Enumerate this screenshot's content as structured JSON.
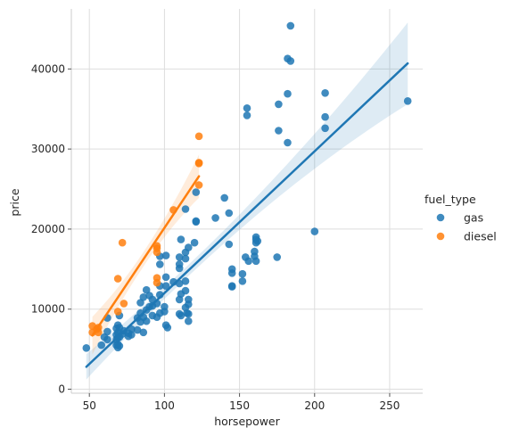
{
  "chart_data": {
    "type": "scatter",
    "xlabel": "horsepower",
    "ylabel": "price",
    "xlim": [
      38,
      272
    ],
    "ylim": [
      -500,
      47500
    ],
    "xticks": [
      50,
      100,
      150,
      200,
      250
    ],
    "yticks": [
      0,
      10000,
      20000,
      30000,
      40000
    ],
    "grid": true,
    "legend": {
      "title": "fuel_type",
      "placement": "right"
    },
    "series": [
      {
        "name": "gas",
        "color": "#1f77b4",
        "points": [
          [
            48,
            5151
          ],
          [
            58,
            5500
          ],
          [
            60,
            6500
          ],
          [
            62,
            6200
          ],
          [
            62,
            7200
          ],
          [
            62,
            8900
          ],
          [
            68,
            5500
          ],
          [
            68,
            6200
          ],
          [
            68,
            6800
          ],
          [
            68,
            7600
          ],
          [
            69,
            5200
          ],
          [
            69,
            5600
          ],
          [
            69,
            6400
          ],
          [
            69,
            7100
          ],
          [
            69,
            8000
          ],
          [
            70,
            5400
          ],
          [
            70,
            6500
          ],
          [
            70,
            7700
          ],
          [
            70,
            9200
          ],
          [
            72,
            6900
          ],
          [
            73,
            7300
          ],
          [
            76,
            6600
          ],
          [
            76,
            7000
          ],
          [
            78,
            6800
          ],
          [
            78,
            7500
          ],
          [
            82,
            7400
          ],
          [
            82,
            8900
          ],
          [
            84,
            8400
          ],
          [
            84,
            9500
          ],
          [
            84,
            10800
          ],
          [
            86,
            7100
          ],
          [
            86,
            9000
          ],
          [
            86,
            11500
          ],
          [
            88,
            8500
          ],
          [
            88,
            9900
          ],
          [
            88,
            12400
          ],
          [
            90,
            10300
          ],
          [
            90,
            11700
          ],
          [
            92,
            9200
          ],
          [
            92,
            10400
          ],
          [
            92,
            11200
          ],
          [
            95,
            9000
          ],
          [
            95,
            10700
          ],
          [
            97,
            9500
          ],
          [
            97,
            11800
          ],
          [
            97,
            12900
          ],
          [
            97,
            15600
          ],
          [
            97,
            16600
          ],
          [
            100,
            9700
          ],
          [
            100,
            10300
          ],
          [
            101,
            8000
          ],
          [
            101,
            12900
          ],
          [
            101,
            14000
          ],
          [
            101,
            16700
          ],
          [
            102,
            7700
          ],
          [
            106,
            13400
          ],
          [
            110,
            9400
          ],
          [
            110,
            11200
          ],
          [
            110,
            13200
          ],
          [
            110,
            15100
          ],
          [
            110,
            15600
          ],
          [
            110,
            16500
          ],
          [
            111,
            9200
          ],
          [
            111,
            11900
          ],
          [
            111,
            18700
          ],
          [
            114,
            10200
          ],
          [
            114,
            12300
          ],
          [
            114,
            13500
          ],
          [
            114,
            16300
          ],
          [
            114,
            17100
          ],
          [
            114,
            22500
          ],
          [
            115,
            9500
          ],
          [
            116,
            8500
          ],
          [
            116,
            9400
          ],
          [
            116,
            10600
          ],
          [
            116,
            11200
          ],
          [
            116,
            17700
          ],
          [
            120,
            18300
          ],
          [
            121,
            24600
          ],
          [
            121,
            21000
          ],
          [
            121,
            20900
          ],
          [
            134,
            21400
          ],
          [
            140,
            23900
          ],
          [
            143,
            22000
          ],
          [
            143,
            18100
          ],
          [
            145,
            12800
          ],
          [
            145,
            12900
          ],
          [
            145,
            14500
          ],
          [
            145,
            15000
          ],
          [
            152,
            13500
          ],
          [
            152,
            14400
          ],
          [
            154,
            16500
          ],
          [
            155,
            34200
          ],
          [
            155,
            35100
          ],
          [
            156,
            16000
          ],
          [
            160,
            16600
          ],
          [
            160,
            17200
          ],
          [
            161,
            16000
          ],
          [
            161,
            18300
          ],
          [
            161,
            18700
          ],
          [
            161,
            19000
          ],
          [
            162,
            18500
          ],
          [
            175,
            16500
          ],
          [
            176,
            35600
          ],
          [
            176,
            32300
          ],
          [
            182,
            36900
          ],
          [
            182,
            30800
          ],
          [
            182,
            41300
          ],
          [
            184,
            45400
          ],
          [
            184,
            41000
          ],
          [
            200,
            19700
          ],
          [
            207,
            37000
          ],
          [
            207,
            34000
          ],
          [
            207,
            32600
          ],
          [
            262,
            36000
          ]
        ],
        "fit": {
          "x": [
            48,
            262
          ],
          "y": [
            2800,
            40700
          ]
        }
      },
      {
        "name": "diesel",
        "color": "#ff7f0e",
        "points": [
          [
            52,
            7900
          ],
          [
            52,
            7100
          ],
          [
            55,
            7500
          ],
          [
            56,
            7700
          ],
          [
            56,
            7100
          ],
          [
            69,
            13800
          ],
          [
            69,
            9700
          ],
          [
            72,
            18300
          ],
          [
            73,
            10700
          ],
          [
            95,
            13900
          ],
          [
            95,
            13300
          ],
          [
            95,
            17100
          ],
          [
            95,
            17600
          ],
          [
            95,
            17900
          ],
          [
            106,
            22400
          ],
          [
            123,
            31600
          ],
          [
            123,
            28200
          ],
          [
            123,
            28300
          ],
          [
            123,
            25500
          ]
        ],
        "fit": {
          "x": [
            52,
            123
          ],
          "y": [
            6700,
            26600
          ]
        }
      }
    ]
  }
}
